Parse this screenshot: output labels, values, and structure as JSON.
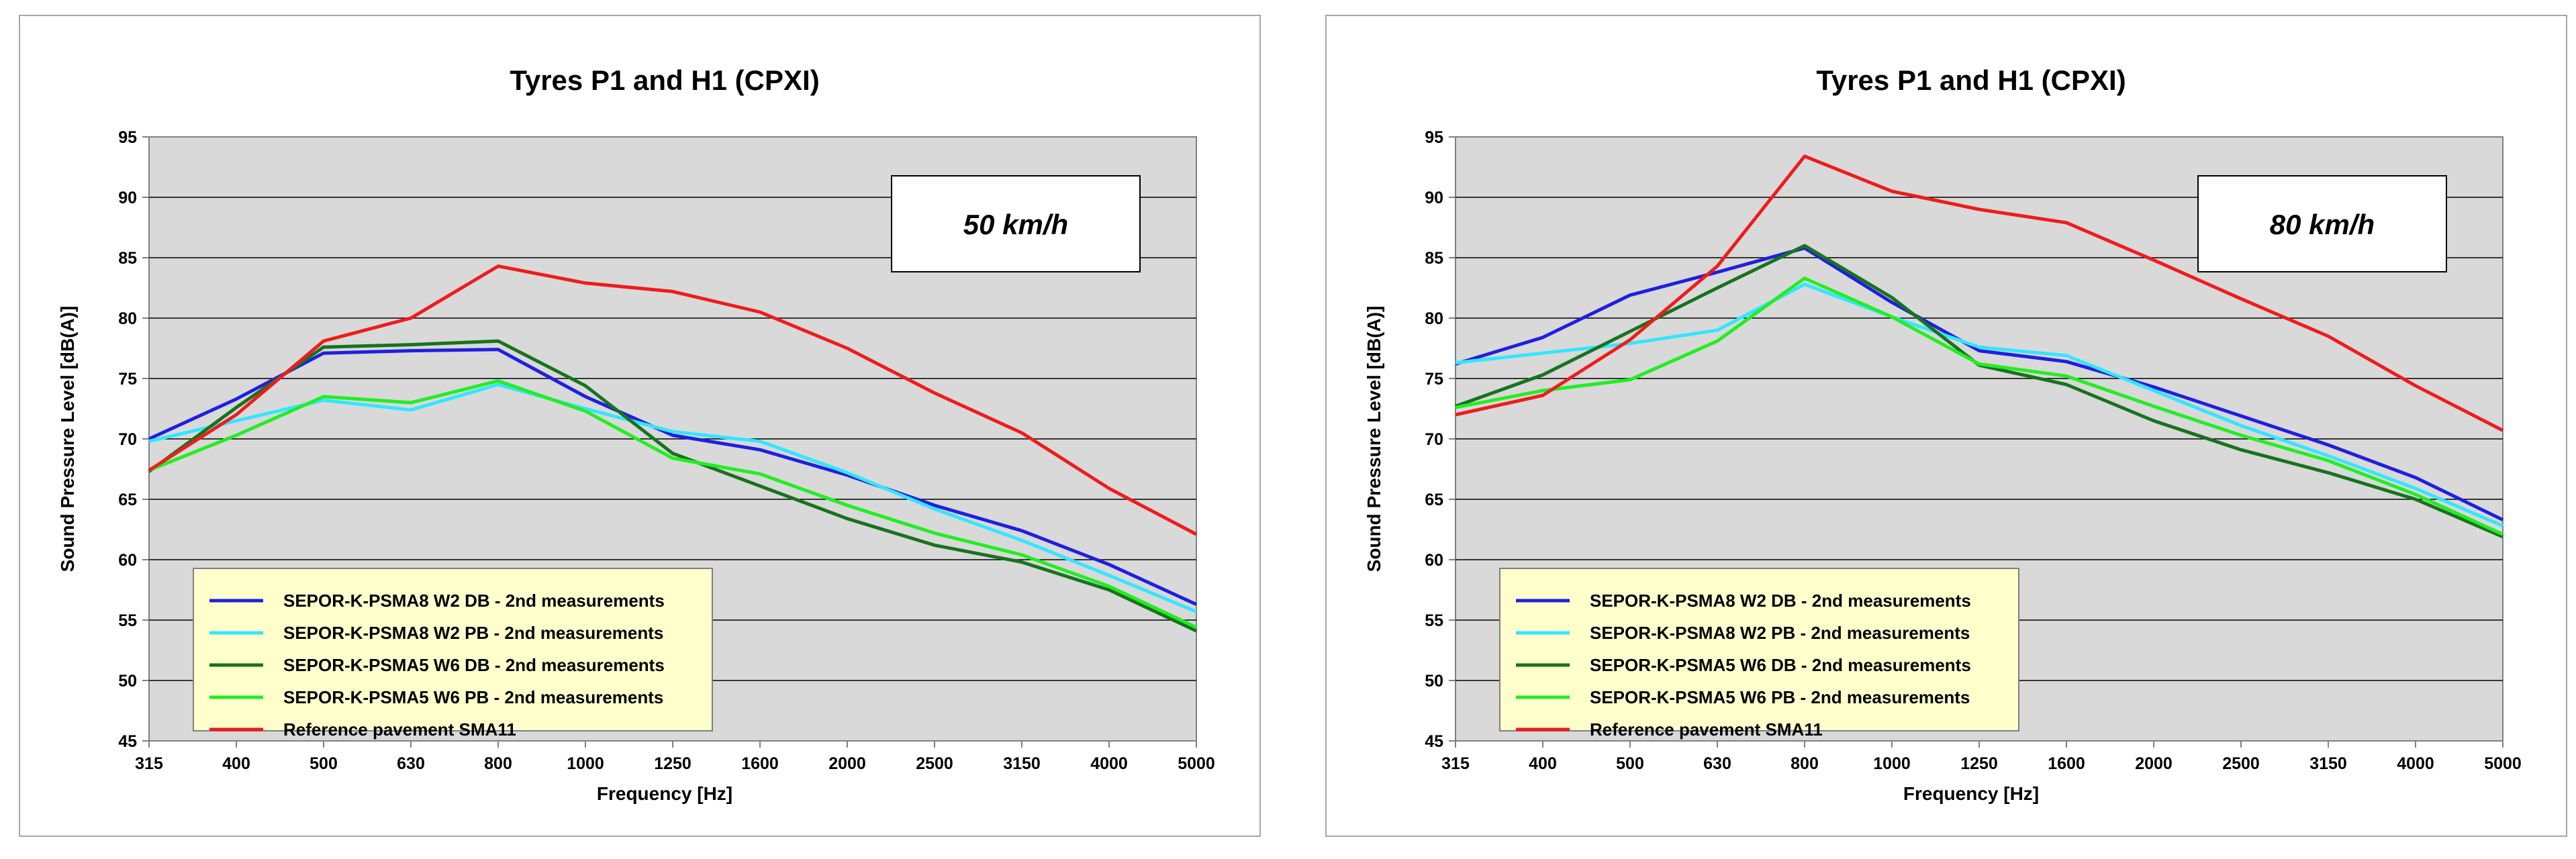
{
  "chart_data": [
    {
      "type": "line",
      "title": "Tyres P1 and H1   (CPXI)",
      "annotation": "50 km/h",
      "xlabel": "Frequency  [Hz]",
      "ylabel": "Sound Pressure  Level  [dB(A)]",
      "ylim": [
        45,
        95
      ],
      "yticks": [
        "45",
        "50",
        "55",
        "60",
        "65",
        "70",
        "75",
        "80",
        "85",
        "90",
        "95"
      ],
      "categories": [
        "315",
        "400",
        "500",
        "630",
        "800",
        "1000",
        "1250",
        "1600",
        "2000",
        "2500",
        "3150",
        "4000",
        "5000"
      ],
      "grid": true,
      "legend_position": "bottom-left",
      "series": [
        {
          "name": "SEPOR-K-PSMA8 W2 DB - 2nd measurements",
          "color": "#1f1fe0",
          "values": [
            70.0,
            73.3,
            77.1,
            77.3,
            77.4,
            73.5,
            70.3,
            69.1,
            67.0,
            64.5,
            62.4,
            59.6,
            56.3
          ]
        },
        {
          "name": "SEPOR-K-PSMA8 W2 PB - 2nd measurements",
          "color": "#33e6ff",
          "values": [
            69.8,
            71.5,
            73.2,
            72.4,
            74.5,
            72.5,
            70.6,
            69.8,
            67.2,
            64.2,
            61.6,
            58.7,
            55.7
          ]
        },
        {
          "name": "SEPOR-K-PSMA5 W6 DB - 2nd measurements",
          "color": "#17731d",
          "values": [
            67.3,
            72.6,
            77.6,
            77.8,
            78.1,
            74.4,
            68.8,
            66.1,
            63.4,
            61.2,
            59.8,
            57.5,
            54.1
          ]
        },
        {
          "name": "SEPOR-K-PSMA5 W6 PB - 2nd measurements",
          "color": "#22ee22",
          "values": [
            67.4,
            70.3,
            73.5,
            73.0,
            74.8,
            72.3,
            68.4,
            67.1,
            64.5,
            62.2,
            60.4,
            57.8,
            54.4
          ]
        },
        {
          "name": "Reference pavement SMA11",
          "color": "#ee1c1c",
          "values": [
            67.4,
            72.0,
            78.1,
            80.0,
            84.3,
            82.9,
            82.2,
            80.5,
            77.5,
            73.8,
            70.5,
            65.9,
            62.1
          ]
        }
      ]
    },
    {
      "type": "line",
      "title": "Tyres P1 and H1   (CPXI)",
      "annotation": "80 km/h",
      "xlabel": "Frequency  [Hz]",
      "ylabel": "Sound Pressure  Level  [dB(A)]",
      "ylim": [
        45,
        95
      ],
      "yticks": [
        "45",
        "50",
        "55",
        "60",
        "65",
        "70",
        "75",
        "80",
        "85",
        "90",
        "95"
      ],
      "categories": [
        "315",
        "400",
        "500",
        "630",
        "800",
        "1000",
        "1250",
        "1600",
        "2000",
        "2500",
        "3150",
        "4000",
        "5000"
      ],
      "grid": true,
      "legend_position": "bottom-left",
      "series": [
        {
          "name": "SEPOR-K-PSMA8 W2 DB - 2nd measurements",
          "color": "#1f1fe0",
          "values": [
            76.2,
            78.4,
            81.9,
            83.8,
            85.8,
            81.3,
            77.3,
            76.4,
            74.3,
            71.9,
            69.5,
            66.8,
            63.3
          ]
        },
        {
          "name": "SEPOR-K-PSMA8 W2 PB - 2nd measurements",
          "color": "#33e6ff",
          "values": [
            76.3,
            77.1,
            77.9,
            79.0,
            82.8,
            80.1,
            77.6,
            76.9,
            74.0,
            71.1,
            68.6,
            65.9,
            62.8
          ]
        },
        {
          "name": "SEPOR-K-PSMA5 W6 DB - 2nd measurements",
          "color": "#17731d",
          "values": [
            72.7,
            75.3,
            78.9,
            82.5,
            86.0,
            81.7,
            76.1,
            74.5,
            71.5,
            69.1,
            67.2,
            65.0,
            61.9
          ]
        },
        {
          "name": "SEPOR-K-PSMA5 W6 PB - 2nd measurements",
          "color": "#22ee22",
          "values": [
            72.6,
            74.0,
            74.9,
            78.1,
            83.3,
            80.1,
            76.2,
            75.2,
            72.7,
            70.3,
            68.2,
            65.4,
            62.1
          ]
        },
        {
          "name": "Reference pavement SMA11",
          "color": "#ee1c1c",
          "values": [
            72.0,
            73.6,
            78.2,
            84.3,
            93.4,
            90.5,
            89.0,
            87.9,
            84.8,
            81.6,
            78.5,
            74.4,
            70.7
          ]
        }
      ]
    }
  ]
}
